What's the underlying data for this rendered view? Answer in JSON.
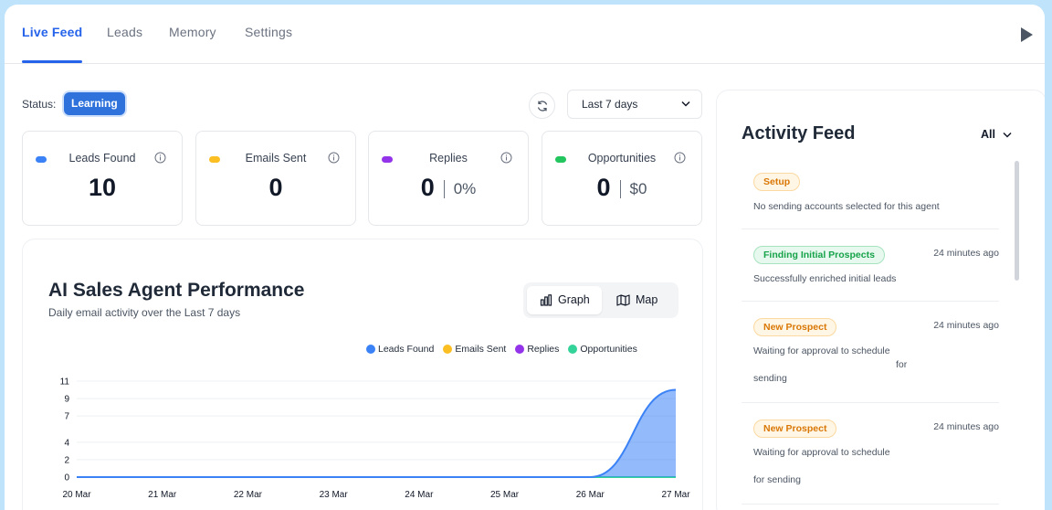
{
  "tabs": [
    {
      "label": "Live Feed",
      "active": true
    },
    {
      "label": "Leads",
      "active": false
    },
    {
      "label": "Memory",
      "active": false
    },
    {
      "label": "Settings",
      "active": false
    }
  ],
  "status": {
    "label": "Status:",
    "badge": "Learning"
  },
  "date_range": {
    "value": "Last 7 days"
  },
  "stats": [
    {
      "label": "Leads Found",
      "value": "10",
      "sub": "",
      "color": "#3b82f6"
    },
    {
      "label": "Emails Sent",
      "value": "0",
      "sub": "",
      "color": "#fbbf24"
    },
    {
      "label": "Replies",
      "value": "0",
      "sub": "0%",
      "color": "#9333ea"
    },
    {
      "label": "Opportunities",
      "value": "0",
      "sub": "$0",
      "color": "#22c55e"
    }
  ],
  "performance": {
    "title": "AI Sales Agent Performance",
    "subtitle": "Daily email activity over the Last 7 days",
    "view_graph": "Graph",
    "view_map": "Map"
  },
  "chart_data": {
    "type": "area",
    "categories": [
      "20 Mar",
      "21 Mar",
      "22 Mar",
      "23 Mar",
      "24 Mar",
      "25 Mar",
      "26 Mar",
      "27 Mar"
    ],
    "y_ticks": [
      0,
      2,
      4,
      7,
      9,
      11
    ],
    "ylim": [
      0,
      11
    ],
    "grid": true,
    "legend_position": "top-right",
    "series": [
      {
        "name": "Leads Found",
        "color": "#3b82f6",
        "values": [
          0,
          0,
          0,
          0,
          0,
          0,
          0,
          10
        ]
      },
      {
        "name": "Emails Sent",
        "color": "#fbbf24",
        "values": [
          0,
          0,
          0,
          0,
          0,
          0,
          0,
          0
        ]
      },
      {
        "name": "Replies",
        "color": "#9333ea",
        "values": [
          0,
          0,
          0,
          0,
          0,
          0,
          0,
          0
        ]
      },
      {
        "name": "Opportunities",
        "color": "#34d399",
        "values": [
          0,
          0,
          0,
          0,
          0,
          0,
          0,
          0
        ]
      }
    ]
  },
  "feed": {
    "title": "Activity Feed",
    "filter": "All",
    "items": [
      {
        "tag": "Setup",
        "tag_color": "orange",
        "time": "",
        "lines": [
          "No sending accounts selected for this agent"
        ]
      },
      {
        "tag": "Finding Initial Prospects",
        "tag_color": "green",
        "time": "24 minutes ago",
        "lines": [
          "Successfully enriched initial leads"
        ]
      },
      {
        "tag": "New Prospect",
        "tag_color": "orange",
        "time": "24 minutes ago",
        "lines": [
          "Waiting for approval to schedule",
          "for",
          "sending"
        ]
      },
      {
        "tag": "New Prospect",
        "tag_color": "orange",
        "time": "24 minutes ago",
        "lines": [
          "Waiting for approval to schedule",
          "",
          "for sending"
        ]
      }
    ]
  }
}
